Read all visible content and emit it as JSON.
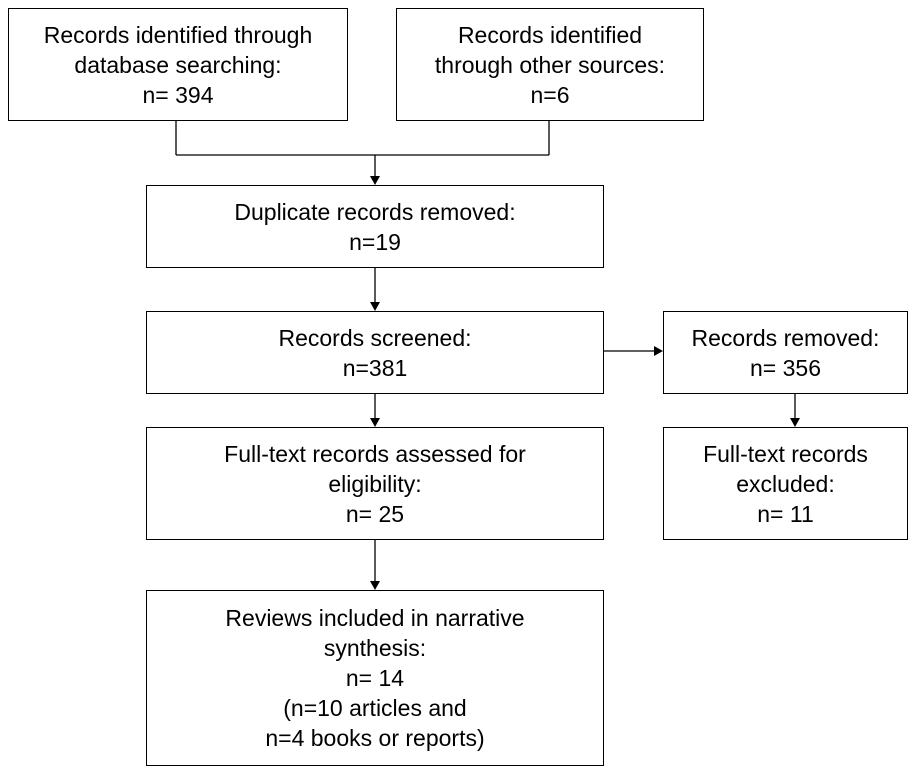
{
  "flowchart": {
    "identified_database": {
      "lines": [
        "Records identified through",
        "database searching:",
        "n= 394"
      ]
    },
    "identified_other": {
      "lines": [
        "Records identified",
        "through other sources:",
        "n=6"
      ]
    },
    "duplicates_removed": {
      "lines": [
        "Duplicate records removed:",
        "n=19"
      ]
    },
    "screened": {
      "lines": [
        "Records screened:",
        "n=381"
      ]
    },
    "records_removed": {
      "lines": [
        "Records removed:",
        "n= 356"
      ]
    },
    "full_text_assessed": {
      "lines": [
        "Full-text records assessed for",
        "eligibility:",
        "n= 25"
      ]
    },
    "full_text_excluded": {
      "lines": [
        "Full-text records",
        "excluded:",
        "n= 11"
      ]
    },
    "included": {
      "lines": [
        "Reviews included in narrative",
        "synthesis:",
        "n= 14",
        "(n=10 articles and",
        "n=4 books or reports)"
      ]
    }
  }
}
